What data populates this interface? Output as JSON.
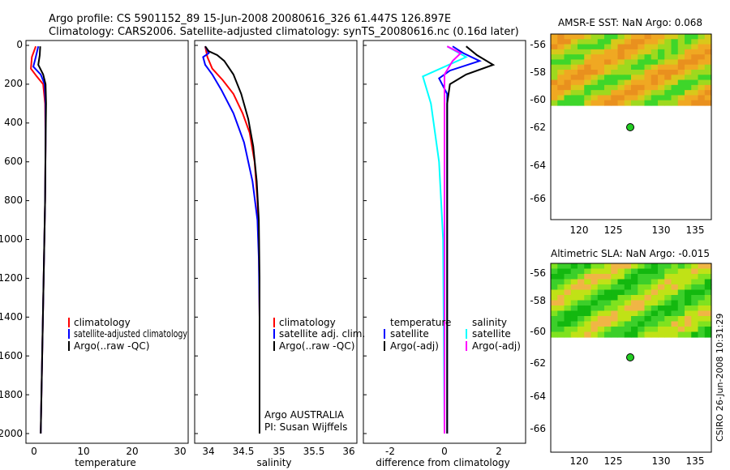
{
  "header": {
    "line1": "Argo profile: CS 5901152_89 15-Jun-2008 20080616_326 61.447S 126.897E",
    "line2": "Climatology: CARS2006. Satellite-adjusted climatology: synTS_20080616.nc (0.16d later)"
  },
  "depth_axis": {
    "ticks": [
      "0",
      "200",
      "400",
      "600",
      "800",
      "1000",
      "1200",
      "1400",
      "1600",
      "1800",
      "2000"
    ]
  },
  "credit": {
    "agency": "Argo AUSTRALIA",
    "pi": "PI: Susan Wijffels"
  },
  "stamp": "CSIRO 26-Jun-2008 10:31:29",
  "colors": {
    "red": "#ff0000",
    "blue": "#0000ff",
    "black": "#000000",
    "cyan": "#00ffff",
    "magenta": "#ff00ff",
    "green": "#22cc22"
  },
  "chart_data": [
    {
      "type": "line",
      "title": "",
      "xlabel": "temperature",
      "ylabel": "",
      "xlim": [
        -2,
        31
      ],
      "ylim": [
        2050,
        0
      ],
      "xticks": [
        "0",
        "10",
        "20",
        "30"
      ],
      "legend": {
        "placement": "bottom-right",
        "entries": [
          {
            "label": "climatology",
            "color": "red"
          },
          {
            "label": "satellite-adjusted climatology",
            "color": "blue"
          },
          {
            "label": "Argo(..raw -QC)",
            "color": "black"
          }
        ]
      },
      "series": [
        {
          "name": "climatology",
          "color": "red",
          "points": [
            [
              0.0,
              5
            ],
            [
              -0.8,
              60
            ],
            [
              -1.0,
              120
            ],
            [
              0.2,
              160
            ],
            [
              1.5,
              200
            ],
            [
              1.9,
              300
            ],
            [
              2.0,
              500
            ],
            [
              1.9,
              800
            ],
            [
              1.6,
              1200
            ],
            [
              1.3,
              1600
            ],
            [
              1.0,
              2000
            ]
          ]
        },
        {
          "name": "satellite-adjusted climatology",
          "color": "blue",
          "points": [
            [
              0.5,
              5
            ],
            [
              0.0,
              60
            ],
            [
              -0.5,
              110
            ],
            [
              1.0,
              150
            ],
            [
              1.8,
              200
            ],
            [
              2.0,
              300
            ],
            [
              2.0,
              500
            ],
            [
              1.9,
              800
            ],
            [
              1.6,
              1200
            ],
            [
              1.3,
              1600
            ],
            [
              1.0,
              2000
            ]
          ]
        },
        {
          "name": "Argo(..raw -QC)",
          "color": "black",
          "points": [
            [
              0.9,
              5
            ],
            [
              0.8,
              50
            ],
            [
              0.5,
              100
            ],
            [
              1.5,
              150
            ],
            [
              2.0,
              200
            ],
            [
              2.1,
              300
            ],
            [
              2.0,
              500
            ],
            [
              1.9,
              800
            ],
            [
              1.6,
              1200
            ],
            [
              1.3,
              1600
            ],
            [
              1.0,
              2000
            ]
          ]
        }
      ]
    },
    {
      "type": "line",
      "title": "",
      "xlabel": "salinity",
      "ylabel": "",
      "xlim": [
        33.8,
        36.1
      ],
      "ylim": [
        2050,
        0
      ],
      "xticks": [
        "34",
        "34.5",
        "35",
        "35.5",
        "36"
      ],
      "legend": {
        "placement": "bottom-right",
        "entries": [
          {
            "label": "climatology",
            "color": "red"
          },
          {
            "label": "satellite adj. clim.",
            "color": "blue"
          },
          {
            "label": "Argo(..raw -QC)",
            "color": "black"
          }
        ]
      },
      "series": [
        {
          "name": "climatology",
          "color": "red",
          "points": [
            [
              33.95,
              5
            ],
            [
              33.98,
              60
            ],
            [
              34.05,
              120
            ],
            [
              34.2,
              180
            ],
            [
              34.35,
              250
            ],
            [
              34.48,
              350
            ],
            [
              34.58,
              450
            ],
            [
              34.65,
              600
            ],
            [
              34.69,
              800
            ],
            [
              34.71,
              1000
            ],
            [
              34.72,
              1400
            ],
            [
              34.72,
              2000
            ]
          ]
        },
        {
          "name": "satellite adj. clim.",
          "color": "blue",
          "points": [
            [
              33.95,
              5
            ],
            [
              34.0,
              40
            ],
            [
              33.92,
              60
            ],
            [
              33.95,
              100
            ],
            [
              34.05,
              150
            ],
            [
              34.18,
              230
            ],
            [
              34.35,
              350
            ],
            [
              34.5,
              500
            ],
            [
              34.62,
              700
            ],
            [
              34.69,
              900
            ],
            [
              34.71,
              1100
            ],
            [
              34.72,
              1400
            ],
            [
              34.72,
              2000
            ]
          ]
        },
        {
          "name": "Argo(..raw -QC)",
          "color": "black",
          "points": [
            [
              33.95,
              5
            ],
            [
              34.0,
              30
            ],
            [
              34.12,
              50
            ],
            [
              34.22,
              80
            ],
            [
              34.35,
              150
            ],
            [
              34.46,
              250
            ],
            [
              34.56,
              380
            ],
            [
              34.63,
              520
            ],
            [
              34.68,
              700
            ],
            [
              34.71,
              900
            ],
            [
              34.72,
              1200
            ],
            [
              34.72,
              2000
            ]
          ]
        }
      ]
    },
    {
      "type": "line",
      "title": "",
      "xlabel": "difference from climatology",
      "ylabel": "",
      "xlim": [
        -3,
        3
      ],
      "ylim": [
        2050,
        0
      ],
      "xticks": [
        "-2",
        "0",
        "2"
      ],
      "legend": {
        "placement": "bottom-right",
        "entries": [
          {
            "label": "temperature",
            "color": "none"
          },
          {
            "label": "satellite",
            "color": "blue"
          },
          {
            "label": "Argo(-adj)",
            "color": "black"
          },
          {
            "label": "salinity",
            "color": "none"
          },
          {
            "label": "satellite",
            "color": "cyan"
          },
          {
            "label": "Argo(-adj)",
            "color": "magenta"
          }
        ]
      },
      "series": [
        {
          "name": "temperature satellite",
          "color": "blue",
          "points": [
            [
              0.3,
              5
            ],
            [
              0.7,
              40
            ],
            [
              1.3,
              80
            ],
            [
              0.2,
              130
            ],
            [
              -0.2,
              170
            ],
            [
              0.1,
              250
            ],
            [
              0.1,
              600
            ],
            [
              0.1,
              2000
            ]
          ]
        },
        {
          "name": "temperature Argo(-adj)",
          "color": "black",
          "points": [
            [
              0.8,
              5
            ],
            [
              1.2,
              50
            ],
            [
              1.8,
              100
            ],
            [
              0.8,
              150
            ],
            [
              0.2,
              200
            ],
            [
              0.1,
              300
            ],
            [
              0.1,
              600
            ],
            [
              0.1,
              2000
            ]
          ]
        },
        {
          "name": "salinity satellite",
          "color": "cyan",
          "points": [
            [
              0.1,
              5
            ],
            [
              0.8,
              60
            ],
            [
              -0.8,
              160
            ],
            [
              -0.5,
              300
            ],
            [
              -0.2,
              600
            ],
            [
              -0.05,
              1000
            ],
            [
              0.0,
              2000
            ]
          ]
        },
        {
          "name": "salinity Argo(-adj)",
          "color": "magenta",
          "points": [
            [
              0.1,
              5
            ],
            [
              0.6,
              40
            ],
            [
              0.3,
              80
            ],
            [
              0.0,
              150
            ],
            [
              0.0,
              300
            ],
            [
              0.0,
              2000
            ]
          ]
        }
      ]
    }
  ],
  "maps": [
    {
      "title": "AMSR-E SST: NaN Argo: 0.068",
      "lon_ticks": [
        "120",
        "125",
        "130",
        "135"
      ],
      "lat_ticks": [
        "-56",
        "-58",
        "-60",
        "-62",
        "-64",
        "-66"
      ],
      "marker": {
        "lon": 126.9,
        "lat": -61.45
      }
    },
    {
      "title": "Altimetric SLA: NaN Argo: -0.015",
      "lon_ticks": [
        "120",
        "125",
        "130",
        "135"
      ],
      "lat_ticks": [
        "-56",
        "-58",
        "-60",
        "-62",
        "-64",
        "-66"
      ],
      "marker": {
        "lon": 126.9,
        "lat": -61.45
      }
    }
  ]
}
